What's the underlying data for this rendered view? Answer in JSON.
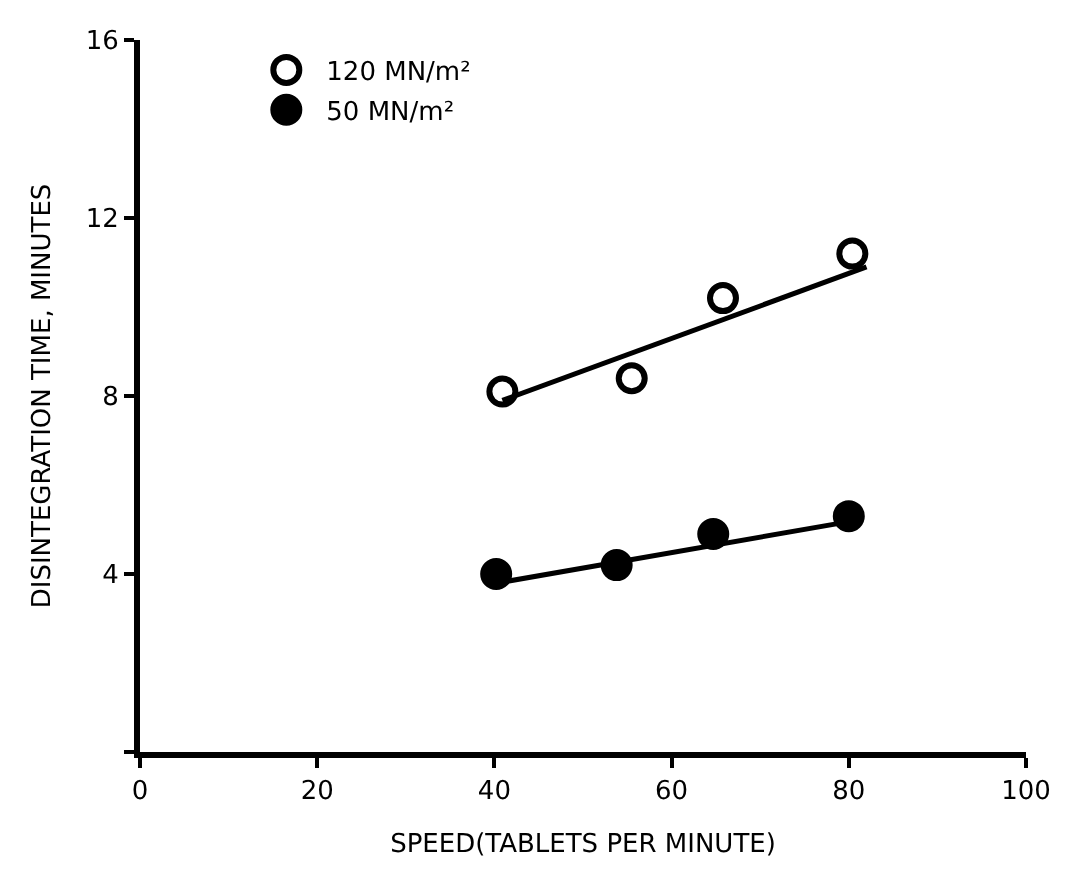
{
  "chart_data": {
    "type": "scatter",
    "xlabel": "SPEED(TABLETS PER MINUTE)",
    "ylabel": "DISINTEGRATION TIME, MINUTES",
    "xlim": [
      0,
      100
    ],
    "xticks": [
      0,
      20,
      40,
      60,
      80,
      100
    ],
    "ylim": [
      0,
      16
    ],
    "yticks": [
      {
        "value": 0,
        "label": null
      },
      4,
      8,
      12,
      16
    ],
    "legend": "top left",
    "series": [
      {
        "name": "120 MN/m²",
        "color": "#000000",
        "marker": "circle-open",
        "x": [
          40.9,
          55.5,
          65.8,
          80.4
        ],
        "values": [
          8.1,
          8.4,
          10.2,
          11.2
        ]
      },
      {
        "name": "50 MN/m²",
        "color": "#000000",
        "marker": "circle",
        "x": [
          40.2,
          53.8,
          64.7,
          80
        ],
        "values": [
          4.0,
          4.2,
          4.9,
          5.3
        ]
      },
      {
        "type": "line",
        "color": "#000000",
        "marker": "none",
        "x": [
          40.9,
          82
        ],
        "values": [
          7.9,
          10.9
        ]
      },
      {
        "type": "line",
        "color": "#000000",
        "marker": "none",
        "x": [
          40.4,
          80.7
        ],
        "values": [
          3.8,
          5.2
        ]
      }
    ]
  }
}
